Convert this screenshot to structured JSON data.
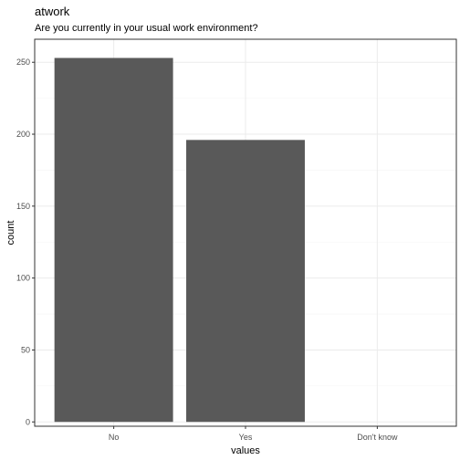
{
  "chart_data": {
    "type": "bar",
    "title": "atwork",
    "subtitle": "Are you currently in your usual work environment?",
    "xlabel": "values",
    "ylabel": "count",
    "categories": [
      "No",
      "Yes",
      "Don't know"
    ],
    "values": [
      253,
      196,
      0
    ],
    "ylim": [
      -3,
      266
    ],
    "yticks": [
      0,
      50,
      100,
      150,
      200,
      250
    ],
    "grid": true,
    "colors": {
      "bar": "#595959",
      "grid_major": "#ebebeb",
      "grid_minor": "#f5f5f5",
      "panel_border": "#333333"
    }
  }
}
